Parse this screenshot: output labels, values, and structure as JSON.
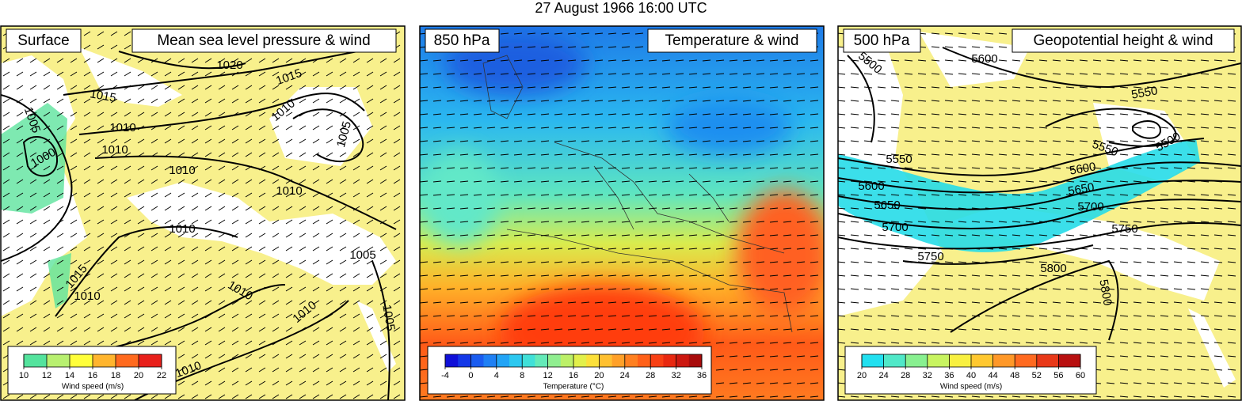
{
  "title": "27 August 1966 16:00 UTC",
  "panels": [
    {
      "level": "Surface",
      "field": "Mean sea level pressure & wind",
      "contour_labels": [
        "1020",
        "1015",
        "1015",
        "1010",
        "1005",
        "1005",
        "1010",
        "1010",
        "1000",
        "1010",
        "1010",
        "1010",
        "1005",
        "1015",
        "1010",
        "1010",
        "1010",
        "1005",
        "1010"
      ],
      "colorbar": {
        "ticks": [
          10,
          12,
          14,
          16,
          18,
          20,
          22
        ],
        "label": "Wind speed (m/s)",
        "colors": [
          "#54e39d",
          "#b8f070",
          "#ffff3a",
          "#ffb52e",
          "#ff6a1e",
          "#e8201b"
        ]
      }
    },
    {
      "level": "850 hPa",
      "field": "Temperature & wind",
      "contour_labels": [],
      "colorbar": {
        "ticks": [
          -4,
          0,
          4,
          8,
          12,
          16,
          20,
          24,
          28,
          32,
          36
        ],
        "label": "Temperature (°C)",
        "colors": [
          "#1010d8",
          "#1438e8",
          "#1a5cf0",
          "#1f80f4",
          "#22a4f6",
          "#2cc8f0",
          "#40e0d8",
          "#64eab8",
          "#90ee90",
          "#bcf068",
          "#e2f04a",
          "#fce03a",
          "#ffc030",
          "#ffa028",
          "#ff8020",
          "#ff6018",
          "#f84014",
          "#e82810",
          "#cc1810",
          "#a80c0c"
        ]
      }
    },
    {
      "level": "500 hPa",
      "field": "Geopotential height & wind",
      "contour_labels": [
        "5500",
        "5600",
        "5550",
        "5550",
        "5500",
        "5550",
        "5600",
        "5600",
        "5650",
        "5650",
        "5700",
        "5700",
        "5750",
        "5750",
        "5800",
        "5800"
      ],
      "colorbar": {
        "ticks": [
          20,
          24,
          28,
          32,
          36,
          40,
          44,
          48,
          52,
          56,
          60
        ],
        "label": "Wind speed (m/s)",
        "colors": [
          "#22e0f0",
          "#50e8c8",
          "#88f090",
          "#c8f460",
          "#f8f040",
          "#ffc830",
          "#ff9828",
          "#ff6a20",
          "#e83818",
          "#b81010"
        ]
      }
    }
  ]
}
